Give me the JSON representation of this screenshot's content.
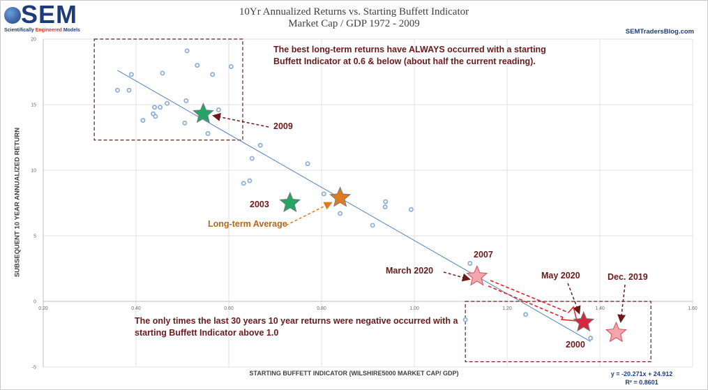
{
  "branding": {
    "logo_text": "SEM",
    "logo_sub_a": "Scientifically ",
    "logo_sub_b": "Engineered",
    "logo_sub_c": " Models",
    "site": "SEMTradersBlog.com"
  },
  "colors": {
    "point": "#8fb0d6",
    "trendline": "#4f81bd",
    "annotation": "#6b1a1a",
    "green_star": "#22a565",
    "orange_star": "#e07a1e",
    "red_star": "#d7263d",
    "pink_star": "#f3a6ad"
  },
  "annotations": {
    "best_returns": "The best long-term returns have ALWAYS occurred with a starting Buffett Indicator at 0.6 & below (about half the current reading).",
    "negative_returns": "The only times the last 30 years 10 year returns were negative occurred with a starting Buffett Indicator above 1.0",
    "label_2009": "2009",
    "label_2003": "2003",
    "label_long_term": "Long-term Average",
    "label_2007": "2007",
    "label_march_2020": "March 2020",
    "label_may_2020": "May 2020",
    "label_dec_2019": "Dec. 2019",
    "label_2000": "2000"
  },
  "chart_data": {
    "type": "scatter",
    "title": "10Yr Annualized Returns vs. Starting Buffett Indicator",
    "subtitle": "Market Cap / GDP 1972 - 2009",
    "xlabel": "STARTING BUFFETT INDICATOR (WILSHIRE5000 MARKET CAP/ GDP)",
    "ylabel": "SUBSEQUENT 10 YEAR ANNUALIZED RETURN",
    "xlim": [
      0.2,
      1.6
    ],
    "ylim": [
      -5,
      20
    ],
    "xticks": [
      "0.20",
      "0.40",
      "0.60",
      "0.80",
      "1.00",
      "1.20",
      "1.40",
      "1.60"
    ],
    "yticks": [
      "-5",
      "0",
      "5",
      "10",
      "15",
      "20"
    ],
    "grid": true,
    "points": [
      {
        "x": 0.36,
        "y": 16.1
      },
      {
        "x": 0.385,
        "y": 16.1
      },
      {
        "x": 0.39,
        "y": 17.3
      },
      {
        "x": 0.415,
        "y": 13.8
      },
      {
        "x": 0.437,
        "y": 14.3
      },
      {
        "x": 0.44,
        "y": 14.8
      },
      {
        "x": 0.442,
        "y": 14.1
      },
      {
        "x": 0.452,
        "y": 14.8
      },
      {
        "x": 0.457,
        "y": 17.4
      },
      {
        "x": 0.467,
        "y": 15.1
      },
      {
        "x": 0.505,
        "y": 13.6
      },
      {
        "x": 0.508,
        "y": 15.3
      },
      {
        "x": 0.51,
        "y": 19.1
      },
      {
        "x": 0.532,
        "y": 18.0
      },
      {
        "x": 0.555,
        "y": 12.8
      },
      {
        "x": 0.565,
        "y": 17.3
      },
      {
        "x": 0.578,
        "y": 14.6
      },
      {
        "x": 0.605,
        "y": 17.9
      },
      {
        "x": 0.632,
        "y": 9.0
      },
      {
        "x": 0.645,
        "y": 9.2
      },
      {
        "x": 0.65,
        "y": 10.9
      },
      {
        "x": 0.668,
        "y": 11.9
      },
      {
        "x": 0.77,
        "y": 10.5
      },
      {
        "x": 0.805,
        "y": 8.2
      },
      {
        "x": 0.84,
        "y": 6.7
      },
      {
        "x": 0.91,
        "y": 5.8
      },
      {
        "x": 0.937,
        "y": 7.2
      },
      {
        "x": 0.938,
        "y": 7.6
      },
      {
        "x": 0.993,
        "y": 7.0
      },
      {
        "x": 1.12,
        "y": 2.9
      },
      {
        "x": 1.11,
        "y": -1.4
      },
      {
        "x": 1.24,
        "y": -1.0
      },
      {
        "x": 1.38,
        "y": -2.8
      }
    ],
    "trendline": {
      "equation": "y = -20.271x + 24.912",
      "r2": "R² = 0.8601",
      "slope": -20.271,
      "intercept": 24.912,
      "x_range": [
        0.36,
        1.38
      ]
    },
    "stars": [
      {
        "name": "2009",
        "x": 0.545,
        "y": 14.3,
        "color": "green"
      },
      {
        "name": "2003",
        "x": 0.732,
        "y": 7.5,
        "color": "green"
      },
      {
        "name": "Long-term Average",
        "x": 0.84,
        "y": 7.9,
        "color": "orange"
      },
      {
        "name": "March 2020",
        "x": 1.135,
        "y": 1.9,
        "color": "pink"
      },
      {
        "name": "May 2020",
        "x": 1.365,
        "y": -1.6,
        "color": "red"
      },
      {
        "name": "Dec. 2019",
        "x": 1.435,
        "y": -2.4,
        "color": "pink"
      }
    ]
  }
}
